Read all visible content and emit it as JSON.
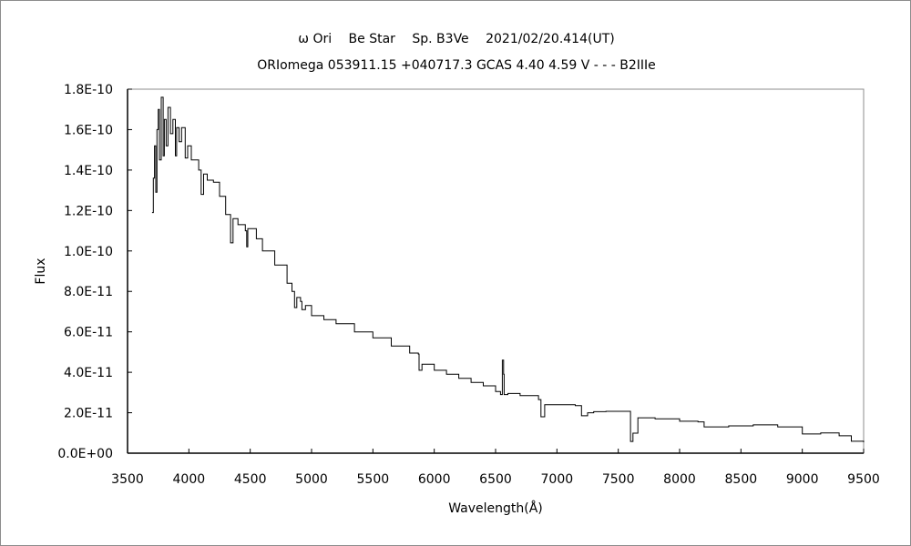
{
  "chart_data": {
    "type": "line",
    "title": "ω Ori　 Be Star　 Sp. B3Ve　 2021/02/20.414(UT)",
    "subtitle": "ORIomega 053911.15 +040717.3 GCAS 4.40 4.59 V - - - B2IIIe",
    "xlabel": "Wavelength(Å)",
    "ylabel": "Flux",
    "xlim": [
      3500,
      9500
    ],
    "ylim": [
      0,
      1.8e-10
    ],
    "xticks": [
      "3500",
      "4000",
      "4500",
      "5000",
      "5500",
      "6000",
      "6500",
      "7000",
      "7500",
      "8000",
      "8500",
      "9000",
      "9500"
    ],
    "yticks": [
      "0.0E+00",
      "2.0E-11",
      "4.0E-11",
      "6.0E-11",
      "8.0E-11",
      "1.0E-10",
      "1.2E-10",
      "1.4E-10",
      "1.6E-10",
      "1.8E-10"
    ],
    "grid": false,
    "line_color": "#000000",
    "points": [
      [
        3700,
        1.19e-10
      ],
      [
        3710,
        1.36e-10
      ],
      [
        3720,
        1.52e-10
      ],
      [
        3730,
        1.29e-10
      ],
      [
        3740,
        1.6e-10
      ],
      [
        3750,
        1.7e-10
      ],
      [
        3760,
        1.45e-10
      ],
      [
        3775,
        1.76e-10
      ],
      [
        3790,
        1.47e-10
      ],
      [
        3800,
        1.65e-10
      ],
      [
        3815,
        1.52e-10
      ],
      [
        3830,
        1.71e-10
      ],
      [
        3850,
        1.58e-10
      ],
      [
        3870,
        1.65e-10
      ],
      [
        3890,
        1.47e-10
      ],
      [
        3900,
        1.61e-10
      ],
      [
        3920,
        1.54e-10
      ],
      [
        3940,
        1.61e-10
      ],
      [
        3970,
        1.46e-10
      ],
      [
        3990,
        1.52e-10
      ],
      [
        4020,
        1.45e-10
      ],
      [
        4050,
        1.45e-10
      ],
      [
        4080,
        1.4e-10
      ],
      [
        4100,
        1.28e-10
      ],
      [
        4120,
        1.38e-10
      ],
      [
        4150,
        1.35e-10
      ],
      [
        4200,
        1.34e-10
      ],
      [
        4250,
        1.27e-10
      ],
      [
        4300,
        1.18e-10
      ],
      [
        4340,
        1.04e-10
      ],
      [
        4360,
        1.16e-10
      ],
      [
        4400,
        1.13e-10
      ],
      [
        4460,
        1.1e-10
      ],
      [
        4471,
        1.02e-10
      ],
      [
        4480,
        1.11e-10
      ],
      [
        4550,
        1.06e-10
      ],
      [
        4600,
        1e-10
      ],
      [
        4700,
        9.3e-11
      ],
      [
        4800,
        8.4e-11
      ],
      [
        4840,
        8e-11
      ],
      [
        4861,
        7.2e-11
      ],
      [
        4880,
        7.7e-11
      ],
      [
        4910,
        7.5e-11
      ],
      [
        4921,
        7.1e-11
      ],
      [
        4950,
        7.3e-11
      ],
      [
        5000,
        6.8e-11
      ],
      [
        5100,
        6.6e-11
      ],
      [
        5200,
        6.4e-11
      ],
      [
        5350,
        6e-11
      ],
      [
        5500,
        5.7e-11
      ],
      [
        5650,
        5.3e-11
      ],
      [
        5800,
        4.95e-11
      ],
      [
        5870,
        4.9e-11
      ],
      [
        5876,
        4.1e-11
      ],
      [
        5900,
        4.4e-11
      ],
      [
        6000,
        4.1e-11
      ],
      [
        6100,
        3.9e-11
      ],
      [
        6200,
        3.7e-11
      ],
      [
        6300,
        3.5e-11
      ],
      [
        6400,
        3.33e-11
      ],
      [
        6500,
        3.05e-11
      ],
      [
        6540,
        2.9e-11
      ],
      [
        6555,
        4.6e-11
      ],
      [
        6565,
        3.9e-11
      ],
      [
        6570,
        2.9e-11
      ],
      [
        6600,
        2.95e-11
      ],
      [
        6700,
        2.85e-11
      ],
      [
        6850,
        2.65e-11
      ],
      [
        6870,
        1.8e-11
      ],
      [
        6900,
        2.4e-11
      ],
      [
        7000,
        2.4e-11
      ],
      [
        7150,
        2.35e-11
      ],
      [
        7200,
        1.85e-11
      ],
      [
        7250,
        2e-11
      ],
      [
        7300,
        2.05e-11
      ],
      [
        7400,
        2.07e-11
      ],
      [
        7580,
        2.07e-11
      ],
      [
        7600,
        5.8e-12
      ],
      [
        7620,
        9.9e-12
      ],
      [
        7660,
        1.75e-11
      ],
      [
        7800,
        1.7e-11
      ],
      [
        8000,
        1.58e-11
      ],
      [
        8150,
        1.55e-11
      ],
      [
        8200,
        1.3e-11
      ],
      [
        8400,
        1.35e-11
      ],
      [
        8600,
        1.4e-11
      ],
      [
        8800,
        1.3e-11
      ],
      [
        9000,
        9.5e-12
      ],
      [
        9150,
        1e-11
      ],
      [
        9300,
        8.6e-12
      ],
      [
        9400,
        5.9e-12
      ],
      [
        9500,
        5.4e-12
      ]
    ]
  }
}
